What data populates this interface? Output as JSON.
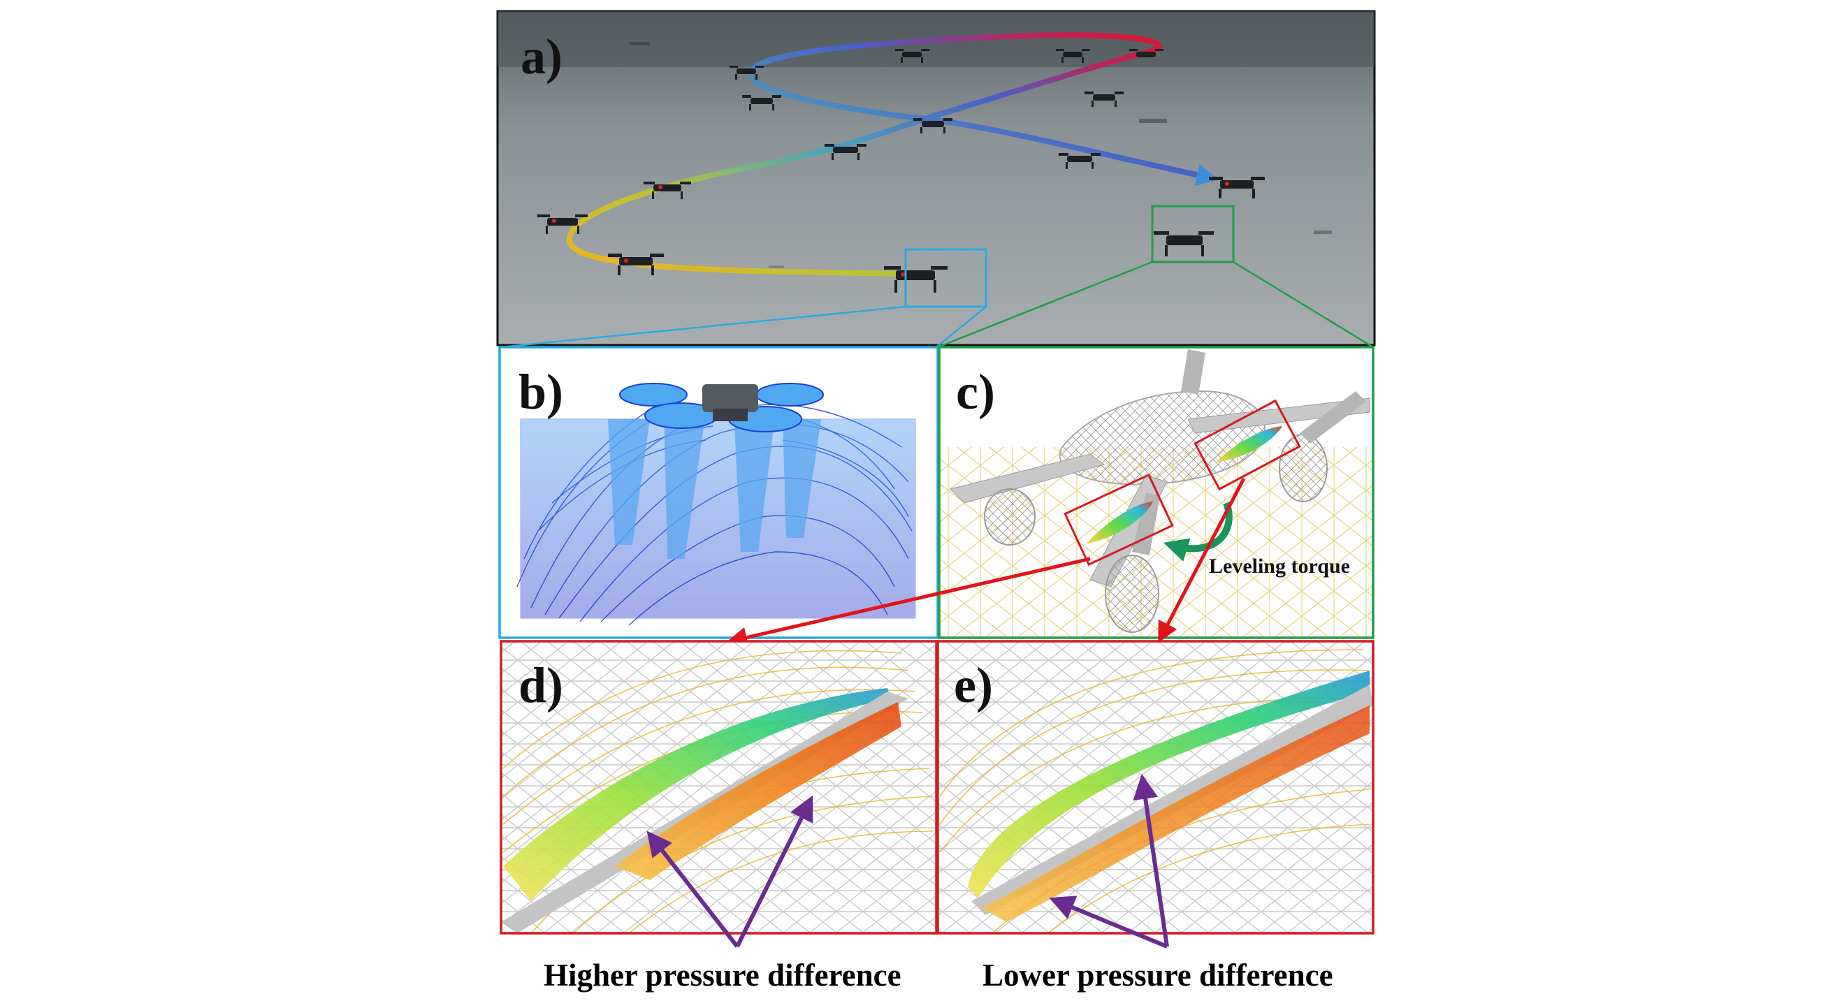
{
  "panels": {
    "a": "a)",
    "b": "b)",
    "c": "c)",
    "d": "d)",
    "e": "e)"
  },
  "annotations": {
    "leveling_torque": "Leveling torque"
  },
  "captions": {
    "left": "Higher pressure difference",
    "right": "Lower pressure difference"
  },
  "colors": {
    "trajectory_start": "#f2b31c",
    "trajectory_mid": "#3f8fd8",
    "trajectory_end": "#e5131b",
    "box_blue": "#29a8e0",
    "box_green": "#1f9e4a",
    "box_red": "#d71920",
    "arrow_red": "#e3131b",
    "arrow_purple": "#6a2c91",
    "torque_arrow": "#17955a",
    "streamlines_blue": "#1a3fd6"
  }
}
